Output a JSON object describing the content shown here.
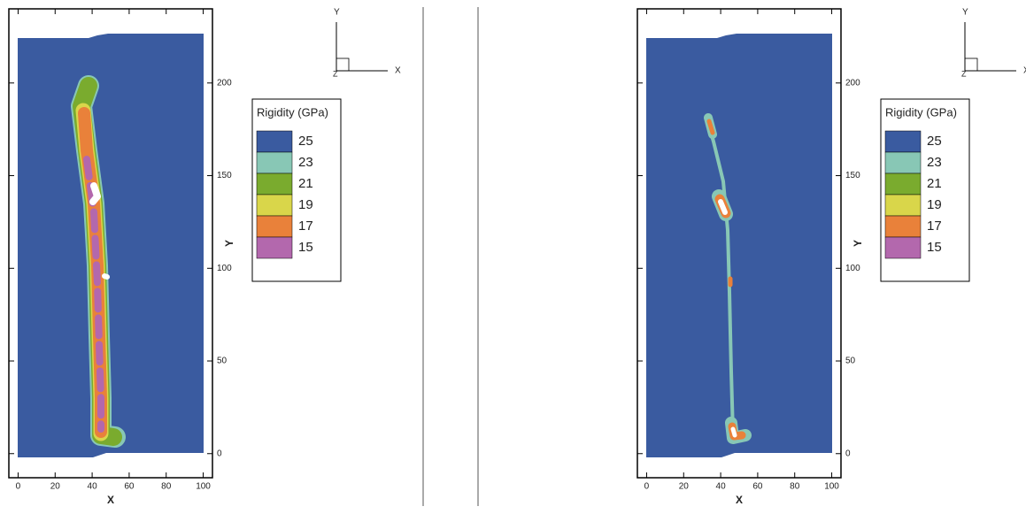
{
  "chart_data": [
    {
      "type": "contour",
      "xlabel": "X",
      "ylabel": "Y",
      "xlim": [
        -5,
        105
      ],
      "ylim": [
        -13,
        240
      ],
      "xticks": [
        0,
        20,
        40,
        60,
        80,
        100
      ],
      "yticks": [
        0,
        50,
        100,
        150,
        200
      ],
      "legend_title": "Rigidity (GPa)",
      "levels": [
        25,
        23,
        21,
        19,
        17,
        15
      ],
      "colors": [
        "#3a5ba0",
        "#88c7b5",
        "#7aab2e",
        "#d9d64a",
        "#e9813a",
        "#b368ad",
        "#ffffff"
      ],
      "triad": [
        "Y",
        "X",
        "Z"
      ]
    },
    {
      "type": "contour",
      "xlabel": "X",
      "ylabel": "Y",
      "xlim": [
        -5,
        105
      ],
      "ylim": [
        -13,
        240
      ],
      "xticks": [
        0,
        20,
        40,
        60,
        80,
        100
      ],
      "yticks": [
        0,
        50,
        100,
        150,
        200
      ],
      "legend_title": "Rigidity (GPa)",
      "levels": [
        25,
        23,
        21,
        19,
        17,
        15
      ],
      "colors": [
        "#3a5ba0",
        "#88c7b5",
        "#7aab2e",
        "#d9d64a",
        "#e9813a",
        "#b368ad",
        "#ffffff"
      ],
      "triad": [
        "Y",
        "X",
        "Z"
      ]
    }
  ]
}
